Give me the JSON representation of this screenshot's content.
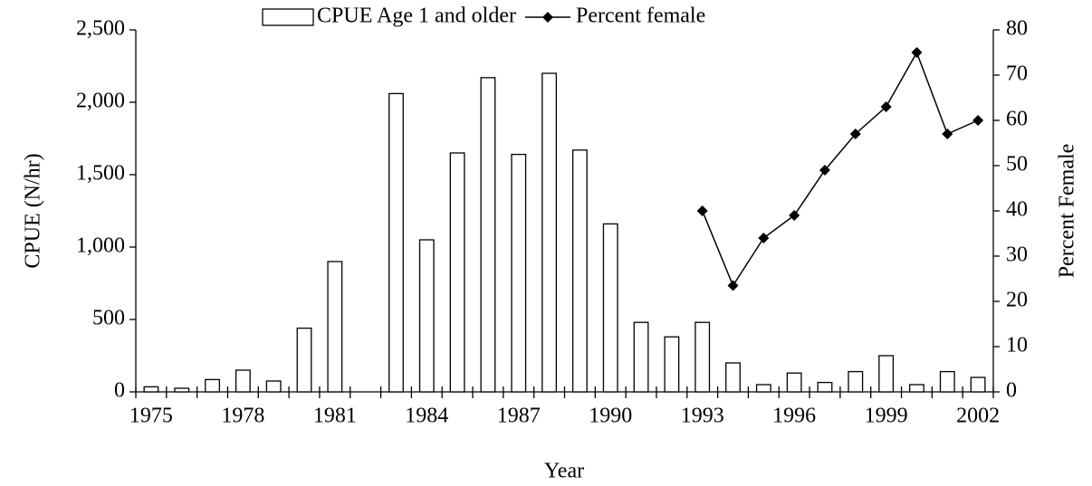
{
  "chart_data": {
    "type": "bar",
    "xlabel": "Year",
    "ylabel": "CPUE (N/hr)",
    "y2label": "Percent Female",
    "categories": [
      "1975",
      null,
      null,
      "1978",
      null,
      null,
      "1981",
      null,
      null,
      "1984",
      null,
      null,
      "1987",
      null,
      null,
      "1990",
      null,
      null,
      "1993",
      null,
      null,
      "1996",
      null,
      null,
      "1999",
      null,
      null,
      "2002"
    ],
    "series": [
      {
        "name": "CPUE Age 1 and older",
        "type": "bar",
        "color": "#ffffff",
        "values": [
          35,
          25,
          85,
          150,
          75,
          440,
          900,
          null,
          2060,
          1050,
          1650,
          2170,
          1640,
          2200,
          1670,
          1160,
          480,
          380,
          480,
          200,
          50,
          130,
          65,
          140,
          250,
          50,
          140,
          100
        ]
      },
      {
        "name": "Percent female",
        "type": "line",
        "color": "#000000",
        "axis": "y2",
        "values": [
          null,
          null,
          null,
          null,
          null,
          null,
          null,
          null,
          null,
          null,
          null,
          null,
          null,
          null,
          null,
          null,
          null,
          null,
          40,
          23.5,
          34,
          39,
          49,
          57,
          63,
          75,
          57,
          60
        ]
      }
    ],
    "ylim": [
      0,
      2500
    ],
    "yticks": [
      0,
      500,
      {
        "value": 1000,
        "label": "1,000"
      },
      {
        "value": 1500,
        "label": "1,500"
      },
      {
        "value": 2000,
        "label": "2,000"
      },
      {
        "value": 2500,
        "label": "2,500"
      }
    ],
    "y2lim": [
      0,
      80
    ],
    "y2ticks": [
      0,
      10,
      20,
      30,
      40,
      50,
      60,
      70,
      80
    ],
    "legend": "top"
  }
}
